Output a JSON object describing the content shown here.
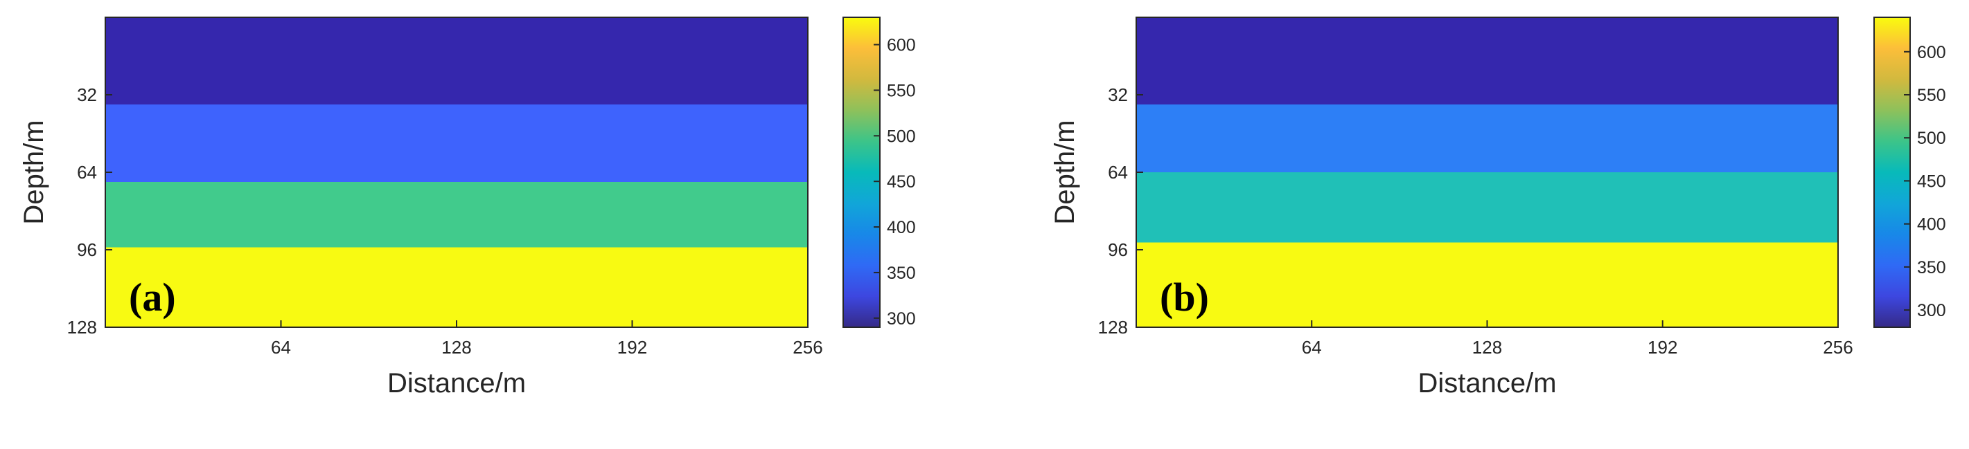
{
  "chart_data": [
    {
      "type": "heatmap",
      "panel_label": "(a)",
      "xlabel": "Distance/m",
      "ylabel": "Depth/m",
      "xlim": [
        0,
        256
      ],
      "ylim": [
        0,
        128
      ],
      "y_reversed": true,
      "xticks": [
        64,
        128,
        192,
        256
      ],
      "yticks": [
        32,
        64,
        96,
        128
      ],
      "layers": [
        {
          "top": 0,
          "bottom": 36,
          "value": 300,
          "color": "#3527ad"
        },
        {
          "top": 36,
          "bottom": 68,
          "value": 370,
          "color": "#3e63fd"
        },
        {
          "top": 68,
          "bottom": 95,
          "value": 500,
          "color": "#41cb8c"
        },
        {
          "top": 95,
          "bottom": 128,
          "value": 630,
          "color": "#f8fa12"
        }
      ],
      "colorbar": {
        "min": 290,
        "max": 630,
        "ticks": [
          300,
          350,
          400,
          450,
          500,
          550,
          600
        ],
        "colormap": "parula"
      }
    },
    {
      "type": "heatmap",
      "panel_label": "(b)",
      "xlabel": "Distance/m",
      "ylabel": "Depth/m",
      "xlim": [
        0,
        256
      ],
      "ylim": [
        0,
        128
      ],
      "y_reversed": true,
      "xticks": [
        64,
        128,
        192,
        256
      ],
      "yticks": [
        32,
        64,
        96,
        128
      ],
      "layers": [
        {
          "top": 0,
          "bottom": 36,
          "value": 290,
          "color": "#3527ad"
        },
        {
          "top": 36,
          "bottom": 64,
          "value": 400,
          "color": "#2d7ff6"
        },
        {
          "top": 64,
          "bottom": 93,
          "value": 470,
          "color": "#20c0b7"
        },
        {
          "top": 93,
          "bottom": 128,
          "value": 640,
          "color": "#f8fa12"
        }
      ],
      "colorbar": {
        "min": 280,
        "max": 640,
        "ticks": [
          300,
          350,
          400,
          450,
          500,
          550,
          600
        ],
        "colormap": "parula"
      }
    }
  ]
}
